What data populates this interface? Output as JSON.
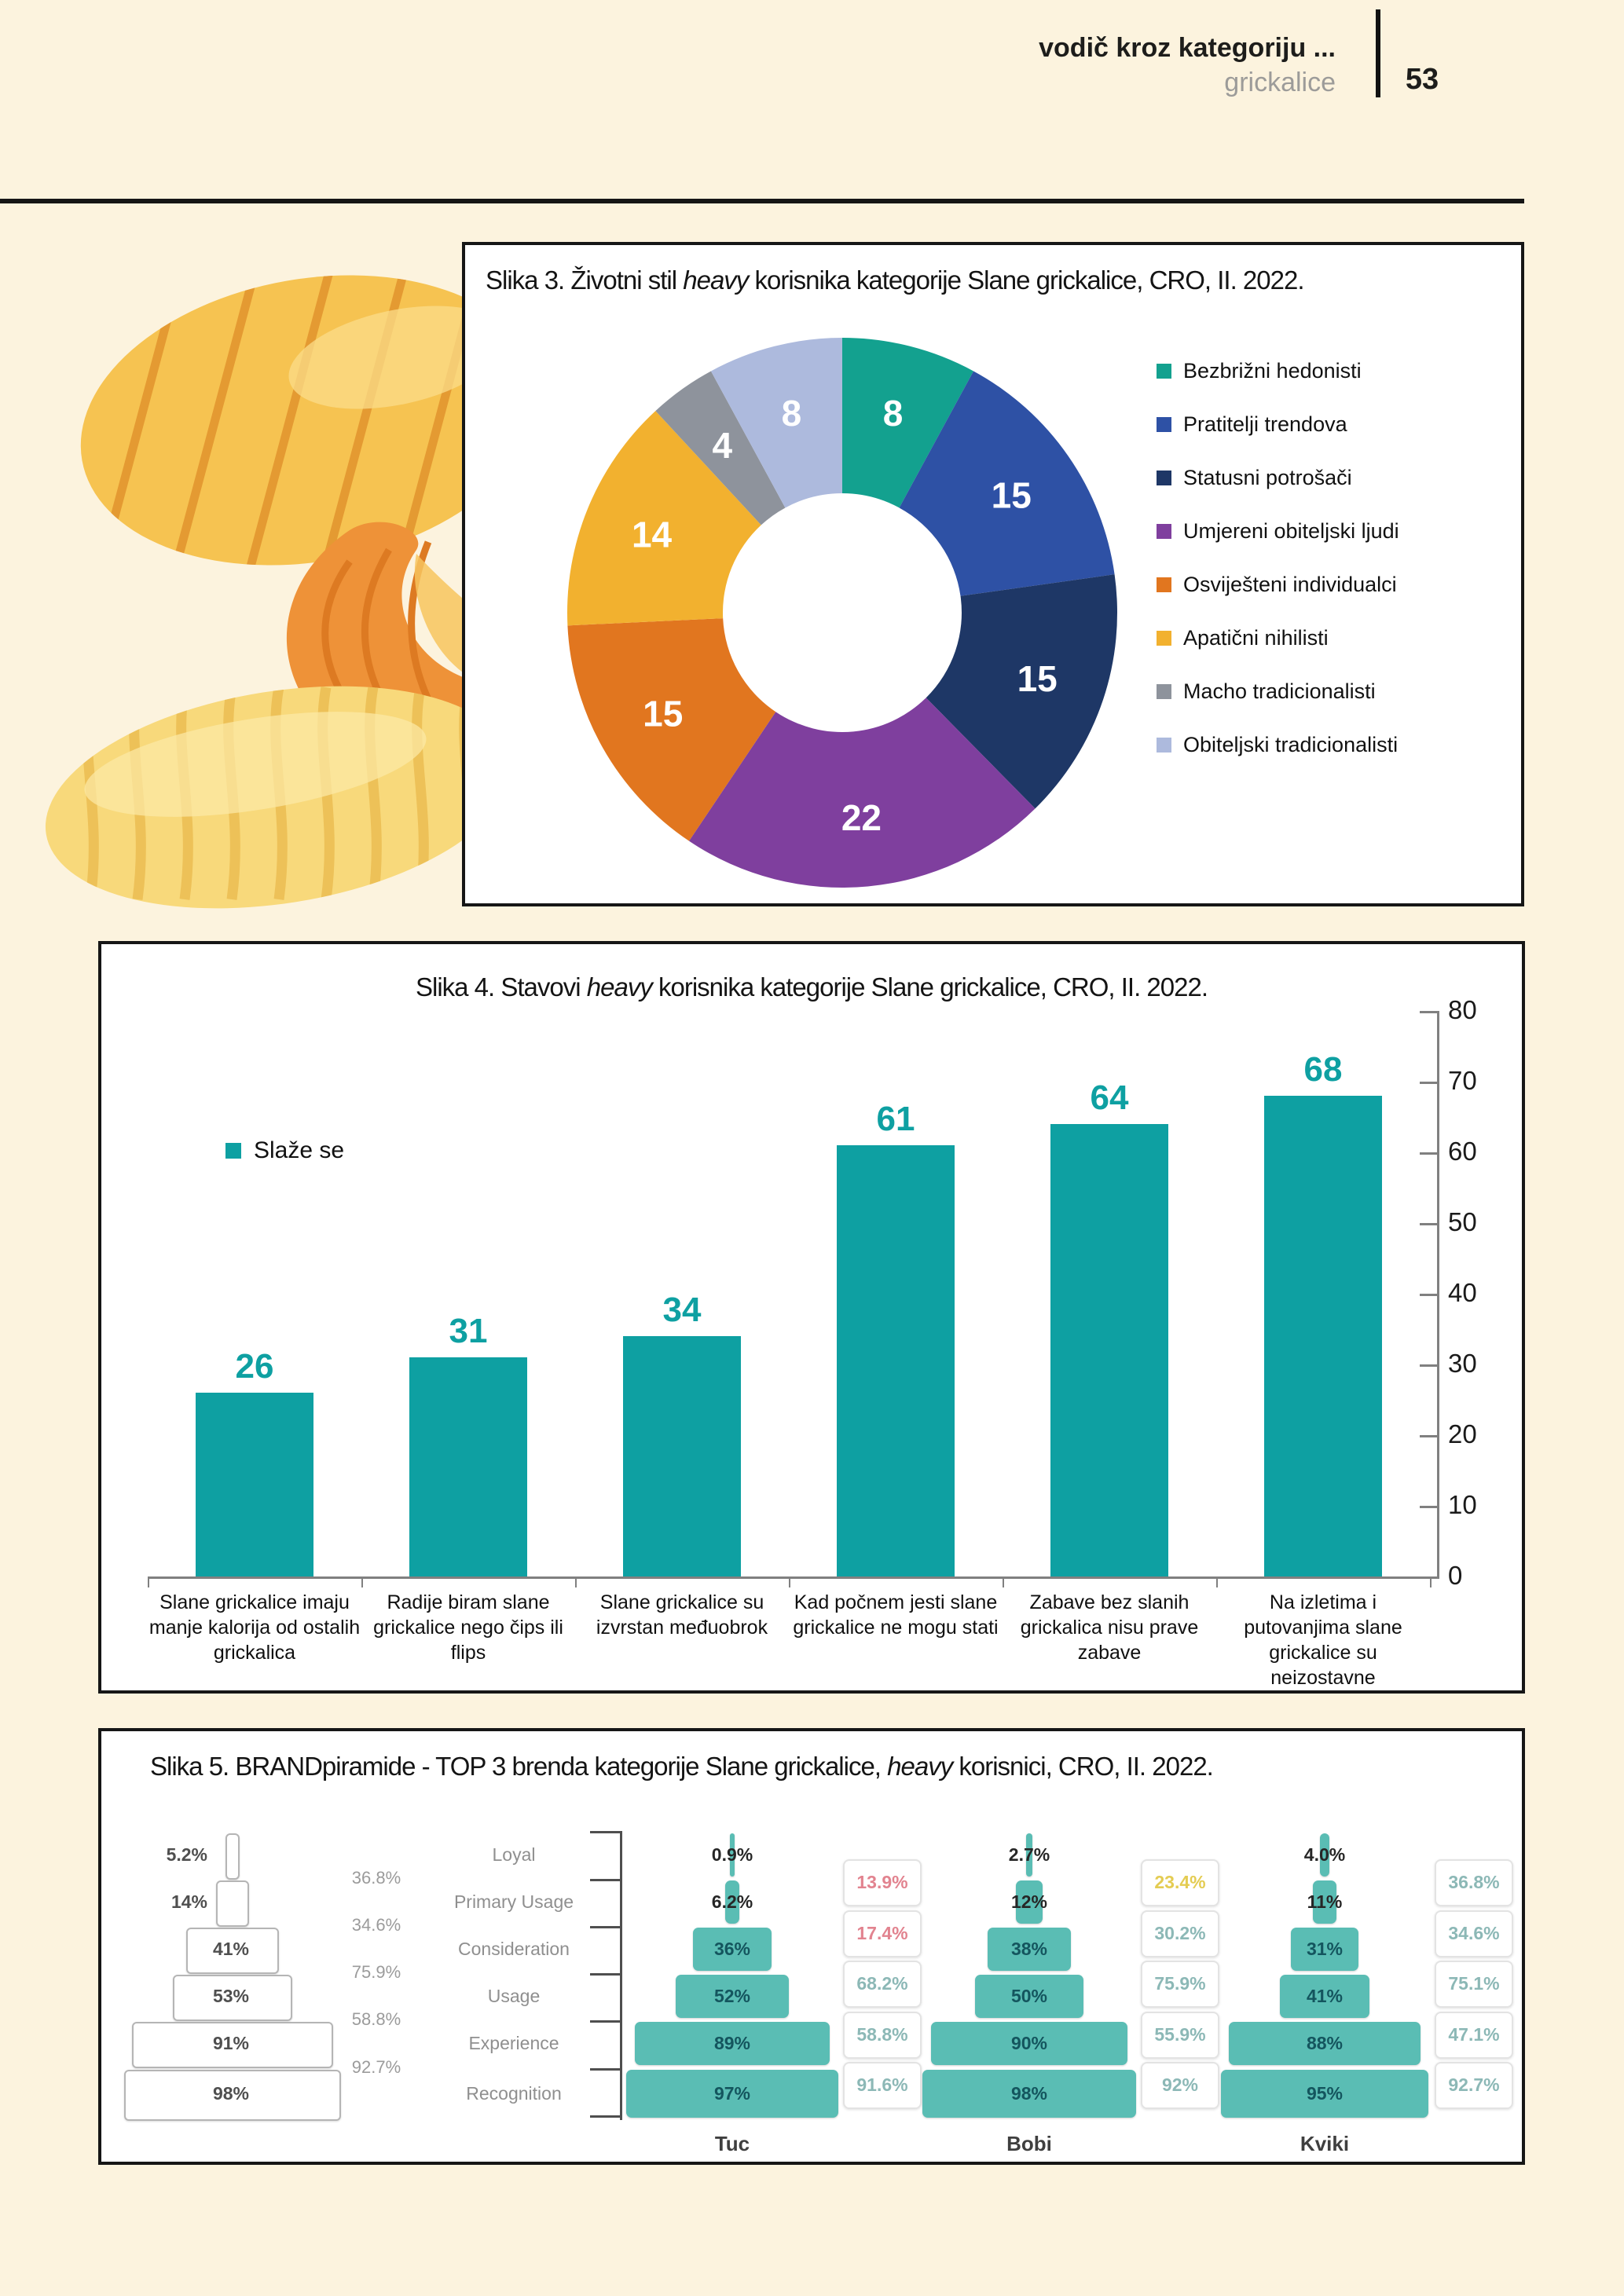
{
  "page": {
    "background": "#fcf3de"
  },
  "header": {
    "title": "vodič kroz kategoriju ...",
    "subtitle": "grickalice",
    "page_number": "53"
  },
  "chart_data": [
    {
      "type": "pie",
      "donut": true,
      "title": "Slika 3. Životni stil heavy korisnika kategorije Slane grickalice, CRO, II. 2022.",
      "title_prefix": "Slika 3. Životni stil ",
      "title_italic": "heavy",
      "title_suffix": " korisnika kategorije Slane grickalice, CRO, II. 2022.",
      "categories": [
        "Bezbrižni hedonisti",
        "Pratitelji trendova",
        "Statusni potrošači",
        "Umjereni obiteljski ljudi",
        "Osviješteni individualci",
        "Apatični nihilisti",
        "Macho tradicionalisti",
        "Obiteljski tradicionalisti"
      ],
      "values": [
        8,
        15,
        15,
        22,
        15,
        14,
        4,
        8
      ],
      "colors": [
        "#13a18f",
        "#2e51a5",
        "#1e3766",
        "#7f3f9e",
        "#e1761f",
        "#f2b12f",
        "#8e939c",
        "#adbadd"
      ],
      "label_color": "#ffffff",
      "legend_position": "right"
    },
    {
      "type": "bar",
      "title": "Slika 4. Stavovi heavy korisnika kategorije Slane grickalice, CRO, II. 2022.",
      "title_prefix": "Slika 4. Stavovi ",
      "title_italic": "heavy",
      "title_suffix": " korisnika kategorije Slane grickalice, CRO, II. 2022.",
      "legend_label": "Slaže se",
      "bar_color": "#0ea0a2",
      "categories": [
        "Slane grickalice imaju manje kalorija od ostalih grickalica",
        "Radije biram slane grickalice nego čips ili flips",
        "Slane grickalice su izvrstan međuobrok",
        "Kad počnem jesti slane grickalice ne mogu stati",
        "Zabave bez slanih grickalica nisu prave zabave",
        "Na izletima i putovanjima slane grickalice su neizostavne"
      ],
      "values": [
        26,
        31,
        34,
        61,
        64,
        68
      ],
      "ylim": [
        0,
        80
      ],
      "yticks": [
        0,
        10,
        20,
        30,
        40,
        50,
        60,
        70,
        80
      ],
      "axis_side": "right",
      "grid": false
    },
    {
      "type": "pyramid",
      "title": "Slika 5. BRANDpiramide - TOP 3 brenda kategorije Slane grickalice, heavy korisnici, CRO, II. 2022.",
      "title_prefix": "Slika 5. BRANDpiramide - TOP 3 brenda kategorije Slane grickalice, ",
      "title_italic": "heavy",
      "title_suffix": " korisnici, CRO, II. 2022.",
      "levels": [
        "Loyal",
        "Primary Usage",
        "Consideration",
        "Usage",
        "Experience",
        "Recognition"
      ],
      "average": {
        "labels": [
          "5.2%",
          "14%",
          "41%",
          "53%",
          "91%",
          "98%"
        ],
        "values": [
          5.2,
          14,
          41,
          53,
          91,
          98
        ],
        "conversions": [
          "36.8%",
          "34.6%",
          "75.9%",
          "58.8%",
          "92.7%"
        ]
      },
      "brands": [
        {
          "name": "Tuc",
          "labels": [
            "0.9%",
            "6.2%",
            "36%",
            "52%",
            "89%",
            "97%"
          ],
          "values": [
            0.9,
            6.2,
            36,
            52,
            89,
            97
          ],
          "conversions": [
            {
              "text": "13.9%",
              "tone": "pink"
            },
            {
              "text": "17.4%",
              "tone": "pink"
            },
            {
              "text": "68.2%",
              "tone": "teal"
            },
            {
              "text": "58.8%",
              "tone": "teal"
            },
            {
              "text": "91.6%",
              "tone": "teal"
            }
          ]
        },
        {
          "name": "Bobi",
          "labels": [
            "2.7%",
            "12%",
            "38%",
            "50%",
            "90%",
            "98%"
          ],
          "values": [
            2.7,
            12,
            38,
            50,
            90,
            98
          ],
          "conversions": [
            {
              "text": "23.4%",
              "tone": "yellow"
            },
            {
              "text": "30.2%",
              "tone": "teal"
            },
            {
              "text": "75.9%",
              "tone": "teal"
            },
            {
              "text": "55.9%",
              "tone": "teal"
            },
            {
              "text": "92%",
              "tone": "teal"
            }
          ]
        },
        {
          "name": "Kviki",
          "labels": [
            "4.0%",
            "11%",
            "31%",
            "41%",
            "88%",
            "95%"
          ],
          "values": [
            4.0,
            11,
            31,
            41,
            88,
            95
          ],
          "conversions": [
            {
              "text": "36.8%",
              "tone": "teal"
            },
            {
              "text": "34.6%",
              "tone": "teal"
            },
            {
              "text": "75.1%",
              "tone": "teal"
            },
            {
              "text": "47.1%",
              "tone": "teal"
            },
            {
              "text": "92.7%",
              "tone": "teal"
            }
          ]
        }
      ],
      "tone_colors": {
        "pink": "#e2838f",
        "yellow": "#e4cc52",
        "teal": "#8cb8b6"
      },
      "pyramid_color": "#5abdb4"
    }
  ]
}
